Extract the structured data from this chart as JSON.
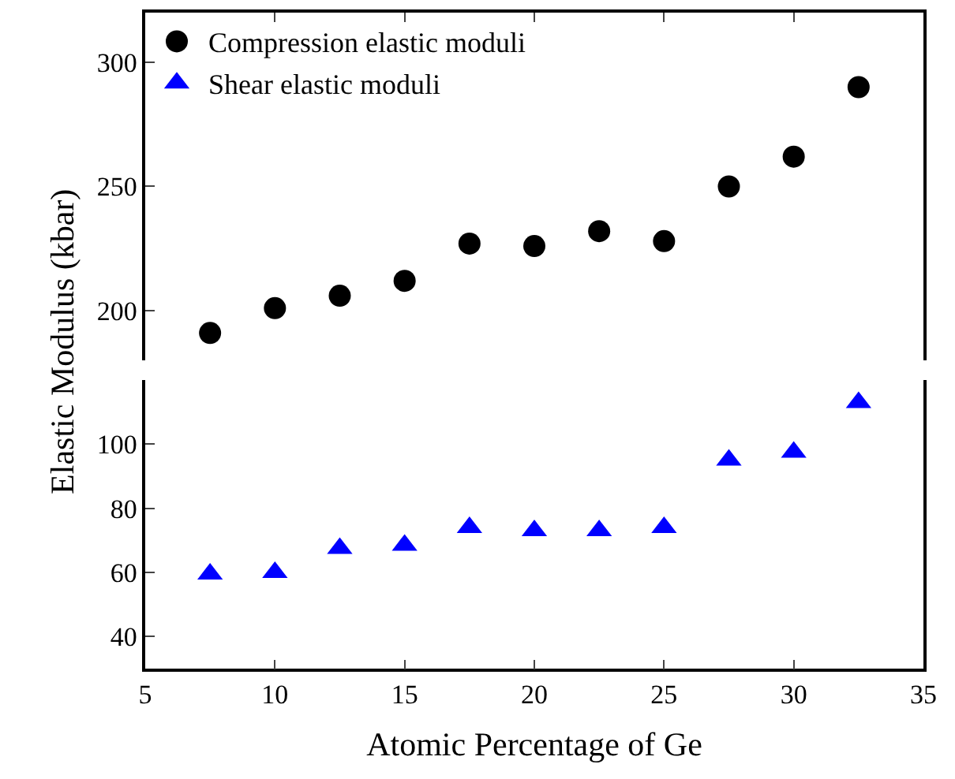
{
  "chart_data": [
    {
      "type": "scatter",
      "ylabel": "Elastic Modulus (kbar)",
      "x": [
        7.5,
        10,
        12.5,
        15,
        17.5,
        20,
        22.5,
        25,
        27.5,
        30,
        32.5
      ],
      "series": [
        {
          "name": "Compression elastic moduli",
          "color": "#000000",
          "values": [
            191,
            201,
            206,
            212,
            227,
            226,
            232,
            228,
            250,
            262,
            290
          ]
        }
      ],
      "marker": "circle",
      "xlim": [
        5,
        35
      ],
      "xticks": [
        5,
        10,
        15,
        20,
        25,
        30,
        35
      ],
      "ylim": [
        180,
        320
      ],
      "yticks": [
        200,
        250,
        300
      ],
      "tick_labels": "y",
      "legend": "top left"
    },
    {
      "type": "scatter",
      "xlabel": "Atomic Percentage of Ge",
      "x": [
        7.5,
        10,
        12.5,
        15,
        17.5,
        20,
        22.5,
        25,
        27.5,
        30,
        32.5
      ],
      "series": [
        {
          "name": "Shear elastic moduli",
          "color": "#0000ff",
          "values": [
            59.5,
            60,
            67.5,
            68.5,
            74,
            73,
            73,
            74,
            95,
            97.5,
            113
          ]
        }
      ],
      "marker": "triangle",
      "xlim": [
        5,
        35
      ],
      "xticks": [
        5,
        10,
        15,
        20,
        25,
        30,
        35
      ],
      "ylim": [
        30,
        120
      ],
      "yticks": [
        40,
        60,
        80,
        100
      ],
      "legend": "top left"
    }
  ]
}
